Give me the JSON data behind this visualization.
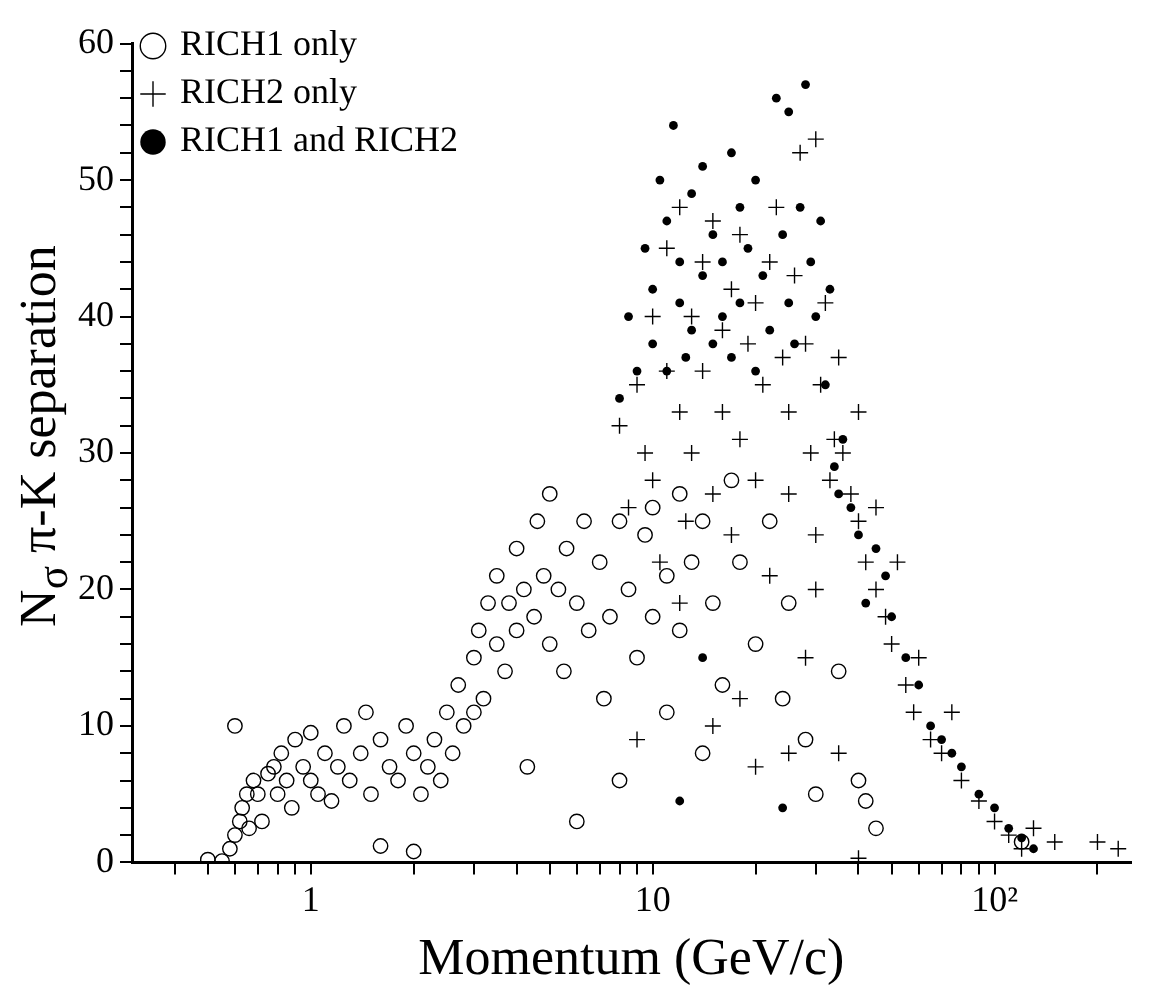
{
  "chart_data": {
    "type": "scatter",
    "xlabel": "Momentum (GeV/c)",
    "ylabel": "N$_{σ}$ π-K separation",
    "log": "x",
    "grid": false,
    "legend": "top left",
    "xlim": [
      0.3,
      250
    ],
    "xticks": [
      {
        "value": 0.4,
        "label": null
      },
      {
        "value": 0.5,
        "label": null
      },
      {
        "value": 0.6,
        "label": null
      },
      {
        "value": 0.7,
        "label": null
      },
      {
        "value": 0.8,
        "label": null
      },
      {
        "value": 0.9,
        "label": null
      },
      1,
      {
        "value": 2,
        "label": null
      },
      {
        "value": 3,
        "label": null
      },
      {
        "value": 4,
        "label": null
      },
      {
        "value": 5,
        "label": null
      },
      {
        "value": 6,
        "label": null
      },
      {
        "value": 7,
        "label": null
      },
      {
        "value": 8,
        "label": null
      },
      {
        "value": 9,
        "label": null
      },
      10,
      {
        "value": 20,
        "label": null
      },
      {
        "value": 30,
        "label": null
      },
      {
        "value": 40,
        "label": null
      },
      {
        "value": 50,
        "label": null
      },
      {
        "value": 60,
        "label": null
      },
      {
        "value": 70,
        "label": null
      },
      {
        "value": 80,
        "label": null
      },
      {
        "value": 90,
        "label": null
      },
      {
        "value": 100,
        "label": "10²"
      },
      {
        "value": 200,
        "label": null
      }
    ],
    "ylim": [
      0,
      60
    ],
    "yticks": [
      0,
      {
        "value": 2,
        "label": null
      },
      {
        "value": 4,
        "label": null
      },
      {
        "value": 6,
        "label": null
      },
      {
        "value": 8,
        "label": null
      },
      10,
      {
        "value": 12,
        "label": null
      },
      {
        "value": 14,
        "label": null
      },
      {
        "value": 16,
        "label": null
      },
      {
        "value": 18,
        "label": null
      },
      20,
      {
        "value": 22,
        "label": null
      },
      {
        "value": 24,
        "label": null
      },
      {
        "value": 26,
        "label": null
      },
      {
        "value": 28,
        "label": null
      },
      30,
      {
        "value": 32,
        "label": null
      },
      {
        "value": 34,
        "label": null
      },
      {
        "value": 36,
        "label": null
      },
      {
        "value": 38,
        "label": null
      },
      40,
      {
        "value": 42,
        "label": null
      },
      {
        "value": 44,
        "label": null
      },
      {
        "value": 46,
        "label": null
      },
      {
        "value": 48,
        "label": null
      },
      50,
      {
        "value": 52,
        "label": null
      },
      {
        "value": 54,
        "label": null
      },
      {
        "value": 56,
        "label": null
      },
      {
        "value": 58,
        "label": null
      },
      60
    ],
    "series": [
      {
        "name": "RICH1 only",
        "color": "#000000",
        "marker": "circle",
        "x": [
          0.5,
          0.55,
          0.58,
          0.6,
          0.62,
          0.6,
          0.63,
          0.65,
          0.66,
          0.68,
          0.7,
          0.72,
          0.75,
          0.78,
          0.8,
          0.82,
          0.85,
          0.88,
          0.9,
          0.95,
          1.0,
          1.0,
          1.05,
          1.1,
          1.15,
          1.2,
          1.25,
          1.3,
          1.4,
          1.45,
          1.5,
          1.6,
          1.6,
          1.7,
          1.8,
          1.9,
          2.0,
          2.0,
          2.1,
          2.2,
          2.3,
          2.4,
          2.5,
          2.6,
          2.7,
          2.8,
          3.0,
          3.0,
          3.1,
          3.2,
          3.3,
          3.5,
          3.5,
          3.7,
          3.8,
          4.0,
          4.0,
          4.2,
          4.3,
          4.5,
          4.6,
          4.8,
          5.0,
          5.0,
          5.3,
          5.5,
          5.6,
          6.0,
          6.0,
          6.3,
          6.5,
          7.0,
          7.2,
          7.5,
          8.0,
          8.0,
          8.5,
          9.0,
          9.5,
          10,
          10,
          11,
          11,
          12,
          12,
          13,
          14,
          14,
          15,
          16,
          17,
          18,
          20,
          22,
          24,
          25,
          28,
          30,
          35,
          40,
          42,
          45,
          120
        ],
        "values": [
          0.2,
          0.1,
          1,
          2,
          3,
          10,
          4,
          5,
          2.5,
          6,
          5,
          3,
          6.5,
          7,
          5,
          8,
          6,
          4,
          9,
          7,
          6,
          9.5,
          5,
          8,
          4.5,
          7,
          10,
          6,
          8,
          11,
          5,
          9,
          1.2,
          7,
          6,
          10,
          8,
          0.8,
          5,
          7,
          9,
          6,
          11,
          8,
          13,
          10,
          15,
          11,
          17,
          12,
          19,
          16,
          21,
          14,
          19,
          23,
          17,
          20,
          7,
          18,
          25,
          21,
          16,
          27,
          20,
          14,
          23,
          19,
          3,
          25,
          17,
          22,
          12,
          18,
          25,
          6,
          20,
          15,
          24,
          18,
          26,
          21,
          11,
          27,
          17,
          22,
          8,
          25,
          19,
          13,
          28,
          22,
          16,
          25,
          12,
          19,
          9,
          5,
          14,
          6,
          4.5,
          2.5,
          1.5
        ]
      },
      {
        "name": "RICH2 only",
        "color": "#000000",
        "marker": "cross",
        "x": [
          8,
          8.5,
          9,
          9.5,
          10,
          10,
          10.5,
          11,
          11,
          12,
          12,
          12.5,
          13,
          13,
          14,
          14,
          15,
          15,
          16,
          16,
          17,
          17,
          18,
          18,
          19,
          20,
          20,
          21,
          22,
          22,
          23,
          24,
          25,
          25,
          26,
          27,
          28,
          29,
          30,
          30,
          31,
          32,
          33,
          34,
          35,
          36,
          38,
          40,
          40,
          42,
          45,
          45,
          48,
          50,
          52,
          55,
          58,
          60,
          65,
          70,
          75,
          80,
          90,
          100,
          110,
          120,
          130,
          150,
          200,
          230,
          35,
          25,
          20,
          15,
          28,
          18,
          40,
          9,
          12,
          30
        ],
        "values": [
          32,
          26,
          35,
          30,
          40,
          28,
          22,
          45,
          36,
          33,
          48,
          25,
          40,
          30,
          44,
          36,
          27,
          47,
          39,
          33,
          42,
          24,
          46,
          31,
          38,
          41,
          28,
          35,
          44,
          21,
          48,
          37,
          33,
          27,
          43,
          52,
          38,
          30,
          53,
          24,
          35,
          41,
          28,
          31,
          37,
          30,
          27,
          25,
          33,
          22,
          20,
          26,
          18,
          16,
          22,
          13,
          11,
          15,
          9,
          8,
          11,
          6,
          4.5,
          3,
          2,
          1,
          2.5,
          1.5,
          1.5,
          1,
          8,
          8,
          7,
          10,
          15,
          12,
          0.3,
          9,
          19,
          20
        ]
      },
      {
        "name": "RICH1 and RICH2",
        "color": "#000000",
        "marker": "circle",
        "x": [
          8.0,
          8.5,
          9,
          9.5,
          10,
          10,
          10.5,
          11,
          11,
          11.5,
          12,
          12,
          12.5,
          13,
          13,
          14,
          14,
          15,
          15,
          16,
          16,
          17,
          17,
          18,
          18,
          19,
          20,
          20,
          21,
          22,
          23,
          24,
          25,
          25,
          26,
          27,
          28,
          29,
          30,
          31,
          32,
          33,
          34,
          35,
          36,
          38,
          40,
          42,
          45,
          48,
          50,
          55,
          60,
          65,
          70,
          75,
          80,
          90,
          100,
          110,
          120,
          130,
          24,
          14,
          12
        ],
        "values": [
          34,
          40,
          36,
          45,
          42,
          38,
          50,
          36,
          47,
          54,
          41,
          44,
          37,
          49,
          39,
          43,
          51,
          38,
          46,
          44,
          40,
          52,
          37,
          48,
          41,
          45,
          36,
          50,
          43,
          39,
          56,
          46,
          41,
          55,
          38,
          48,
          57,
          44,
          40,
          47,
          35,
          42,
          29,
          27,
          31,
          26,
          24,
          19,
          23,
          21,
          18,
          15,
          13,
          10,
          9,
          8,
          7,
          5,
          4,
          2.5,
          1.8,
          1,
          4,
          15,
          4.5
        ]
      }
    ]
  }
}
